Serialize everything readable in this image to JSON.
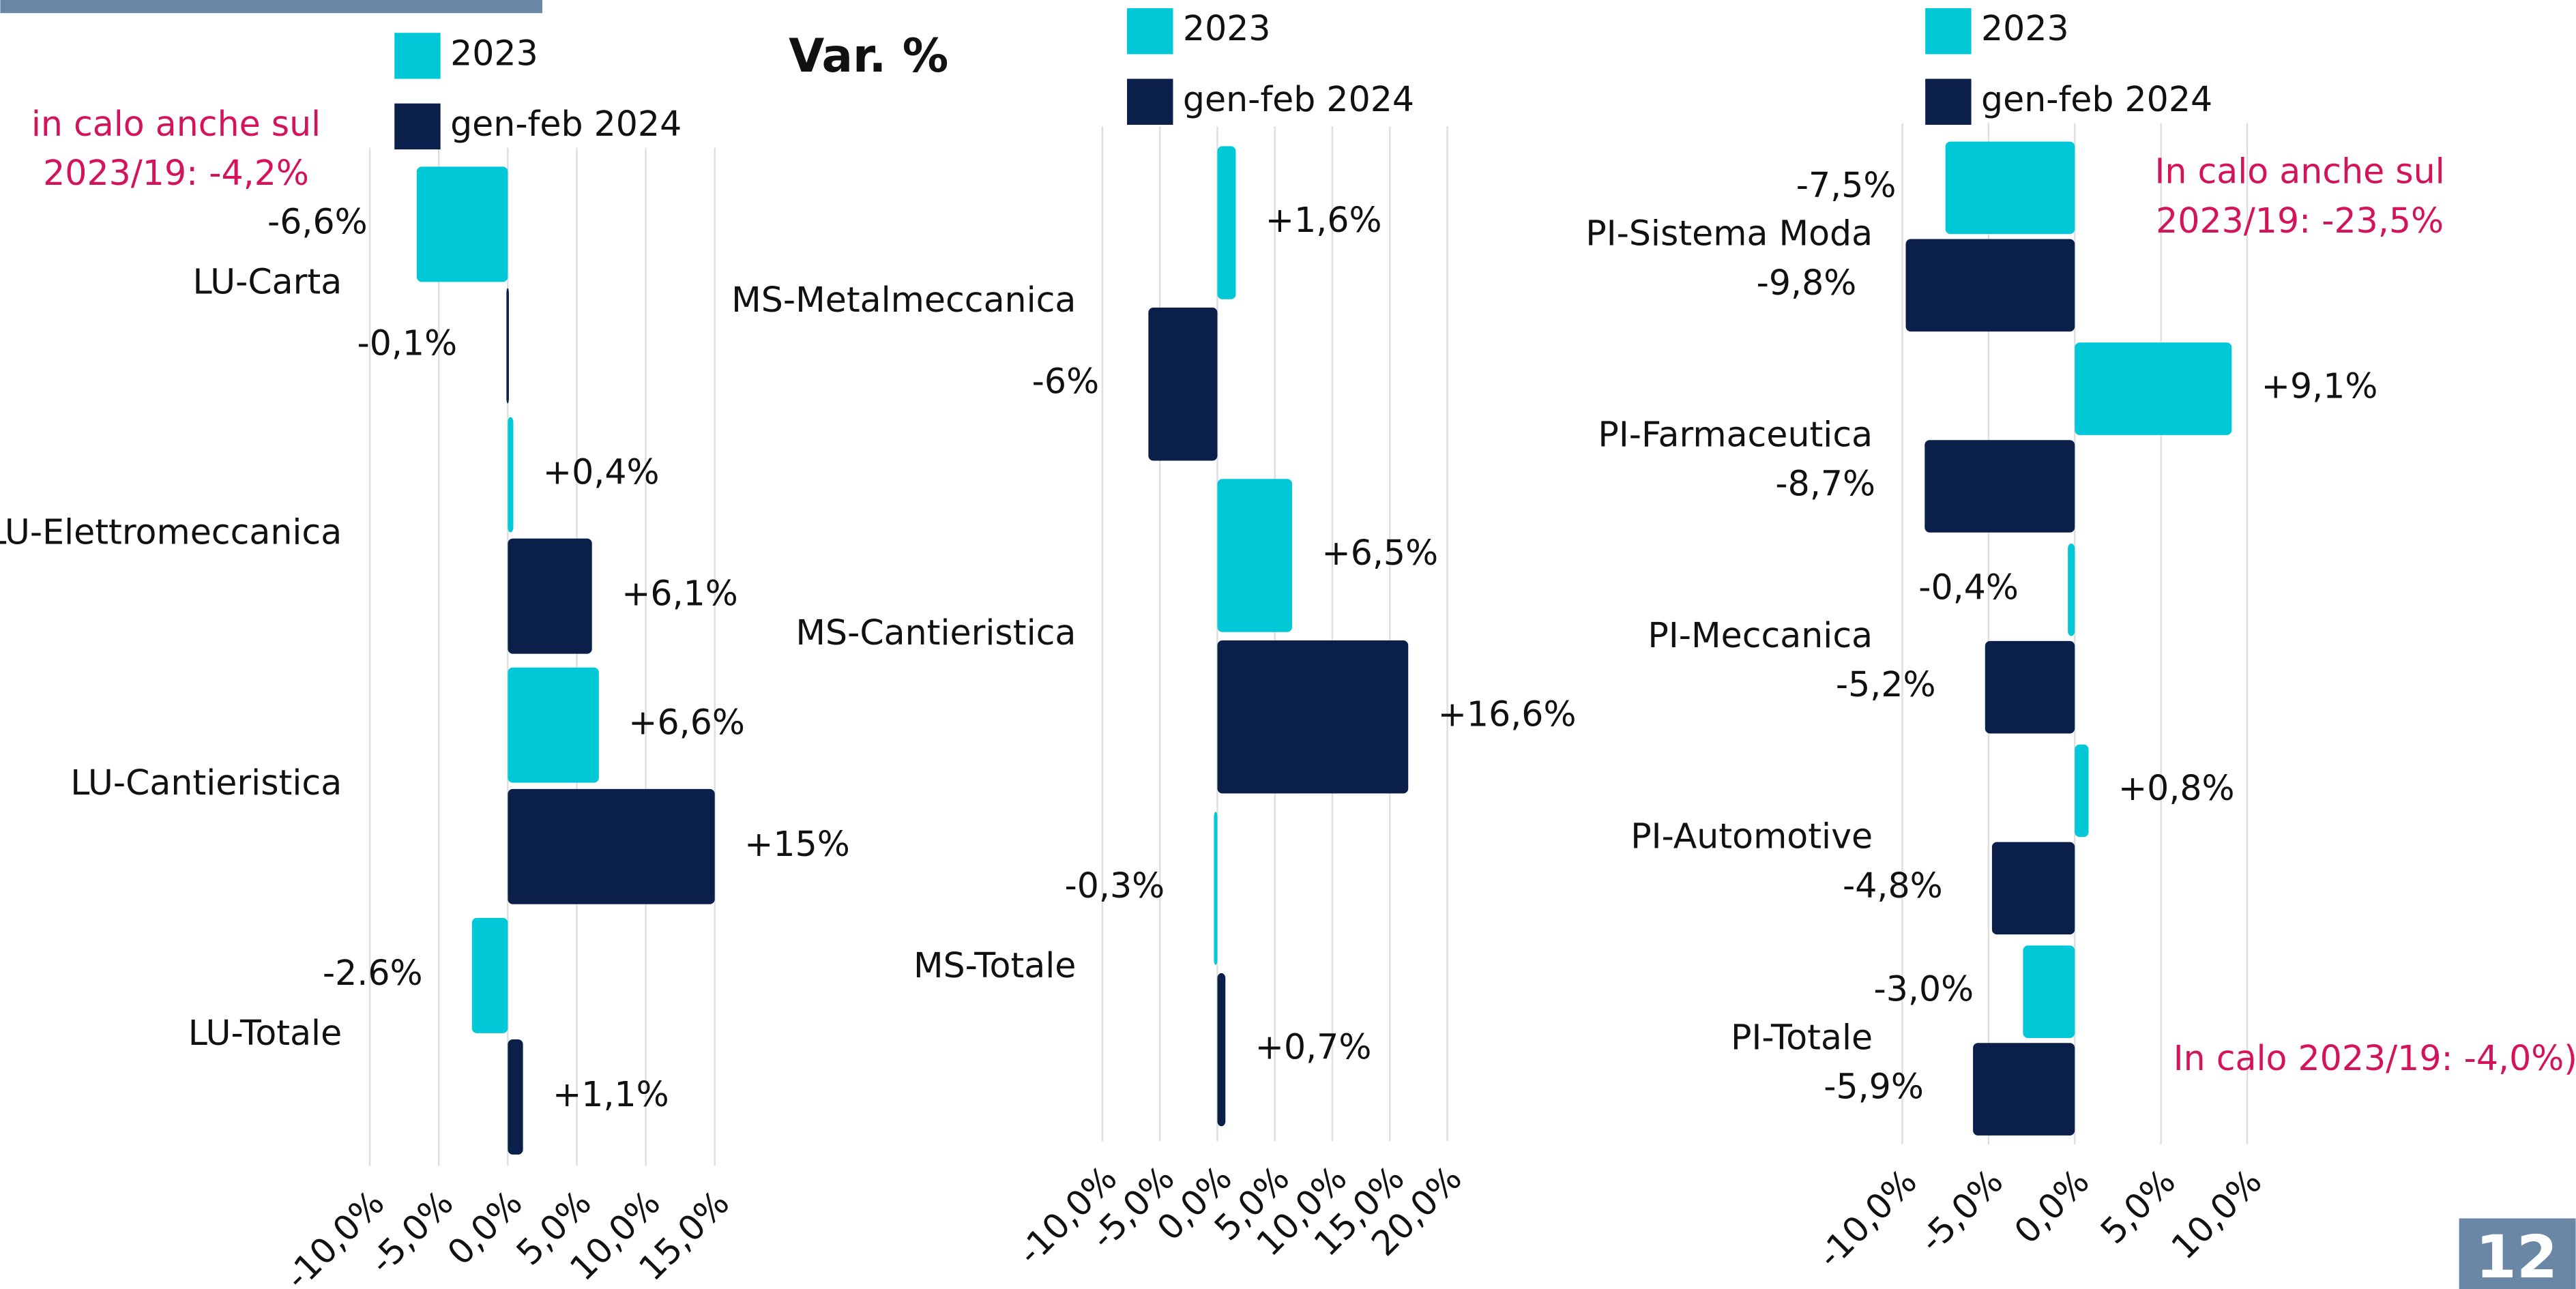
{
  "chart_data": [
    {
      "type": "barh",
      "categories": [
        "LU-Carta",
        "LU-Elettromeccanica",
        "LU-Cantieristica",
        "LU-Totale"
      ],
      "series": [
        {
          "name": "2023",
          "color": "#00c8d7",
          "values": [
            -6.6,
            0.4,
            6.6,
            -2.6
          ],
          "value_labels": [
            "-6,6%",
            "+0,4%",
            "+6,6%",
            "-2.6%"
          ]
        },
        {
          "name": "gen-feb 2024",
          "color": "#0b1f4b",
          "values": [
            -0.1,
            6.1,
            15,
            1.1
          ],
          "value_labels": [
            "-0,1%",
            "+6,1%",
            "+15%",
            "+1,1%"
          ]
        }
      ],
      "xlim": [
        -10,
        15
      ],
      "xticks": [
        {
          "value": -10,
          "label": "-10,0%"
        },
        {
          "value": -5,
          "label": "-5,0%"
        },
        {
          "value": 0,
          "label": "0,0%"
        },
        {
          "value": 5,
          "label": "5,0%"
        },
        {
          "value": 10,
          "label": "10,0%"
        },
        {
          "value": 15,
          "label": "15,0%"
        }
      ],
      "grid": true,
      "annotations": [
        [
          "in calo anche sul",
          "2023/19: -4,2%"
        ]
      ]
    },
    {
      "type": "barh",
      "title": "Var. %",
      "categories": [
        "MS-Metalmeccanica",
        "MS-Cantieristica",
        "MS-Totale"
      ],
      "series": [
        {
          "name": "2023",
          "color": "#00c8d7",
          "values": [
            1.6,
            6.5,
            -0.3
          ],
          "value_labels": [
            "+1,6%",
            "+6,5%",
            "-0,3%"
          ]
        },
        {
          "name": "gen-feb 2024",
          "color": "#0b1f4b",
          "values": [
            -6,
            16.6,
            0.7
          ],
          "value_labels": [
            "-6%",
            "+16,6%",
            "+0,7%"
          ]
        }
      ],
      "xlim": [
        -10,
        20
      ],
      "xticks": [
        {
          "value": -10,
          "label": "-10,0%"
        },
        {
          "value": -5,
          "label": "-5,0%"
        },
        {
          "value": 0,
          "label": "0,0%"
        },
        {
          "value": 5,
          "label": "5,0%"
        },
        {
          "value": 10,
          "label": "10,0%"
        },
        {
          "value": 15,
          "label": "15,0%"
        },
        {
          "value": 20,
          "label": "20,0%"
        }
      ],
      "grid": true
    },
    {
      "type": "barh",
      "categories": [
        "PI-Sistema Moda",
        "PI-Farmaceutica",
        "PI-Meccanica",
        "PI-Automotive",
        "PI-Totale"
      ],
      "series": [
        {
          "name": "2023",
          "color": "#00c8d7",
          "values": [
            -7.5,
            9.1,
            -0.4,
            0.8,
            -3.0
          ],
          "value_labels": [
            "-7,5%",
            "+9,1%",
            "-0,4%",
            "+0,8%",
            "-3,0%"
          ]
        },
        {
          "name": "gen-feb 2024",
          "color": "#0b1f4b",
          "values": [
            -9.8,
            -8.7,
            -5.2,
            -4.8,
            -5.9
          ],
          "value_labels": [
            "-9,8%",
            "-8,7%",
            "-5,2%",
            "-4,8%",
            "-5,9%"
          ]
        }
      ],
      "xlim": [
        -10,
        10
      ],
      "xticks": [
        {
          "value": -10,
          "label": "-10,0%"
        },
        {
          "value": -5,
          "label": "-5,0%"
        },
        {
          "value": 0,
          "label": "0,0%"
        },
        {
          "value": 5,
          "label": "5,0%"
        },
        {
          "value": 10,
          "label": "10,0%"
        }
      ],
      "grid": true,
      "annotations": [
        [
          "In calo anche sul",
          "2023/19: -23,5%"
        ],
        [
          "In calo 2023/19: -4,0%)"
        ]
      ]
    }
  ]
}
